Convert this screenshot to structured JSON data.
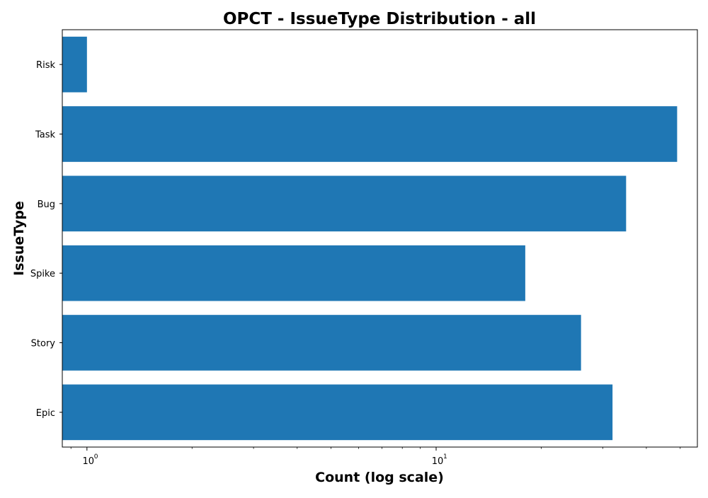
{
  "chart_data": {
    "type": "bar",
    "orientation": "horizontal",
    "title": "OPCT - IssueType Distribution - all",
    "xlabel": "Count (log scale)",
    "ylabel": "IssueType",
    "x_scale": "log",
    "xlim": [
      0.85,
      56
    ],
    "x_ticks": [
      {
        "value": 1,
        "label": "10",
        "exponent": "0"
      },
      {
        "value": 10,
        "label": "10",
        "exponent": "1"
      }
    ],
    "categories": [
      "Epic",
      "Story",
      "Spike",
      "Bug",
      "Task",
      "Risk"
    ],
    "values": [
      32,
      26,
      18,
      35,
      49,
      1
    ],
    "bar_color": "#1f77b4",
    "grid": false,
    "legend": "none"
  }
}
